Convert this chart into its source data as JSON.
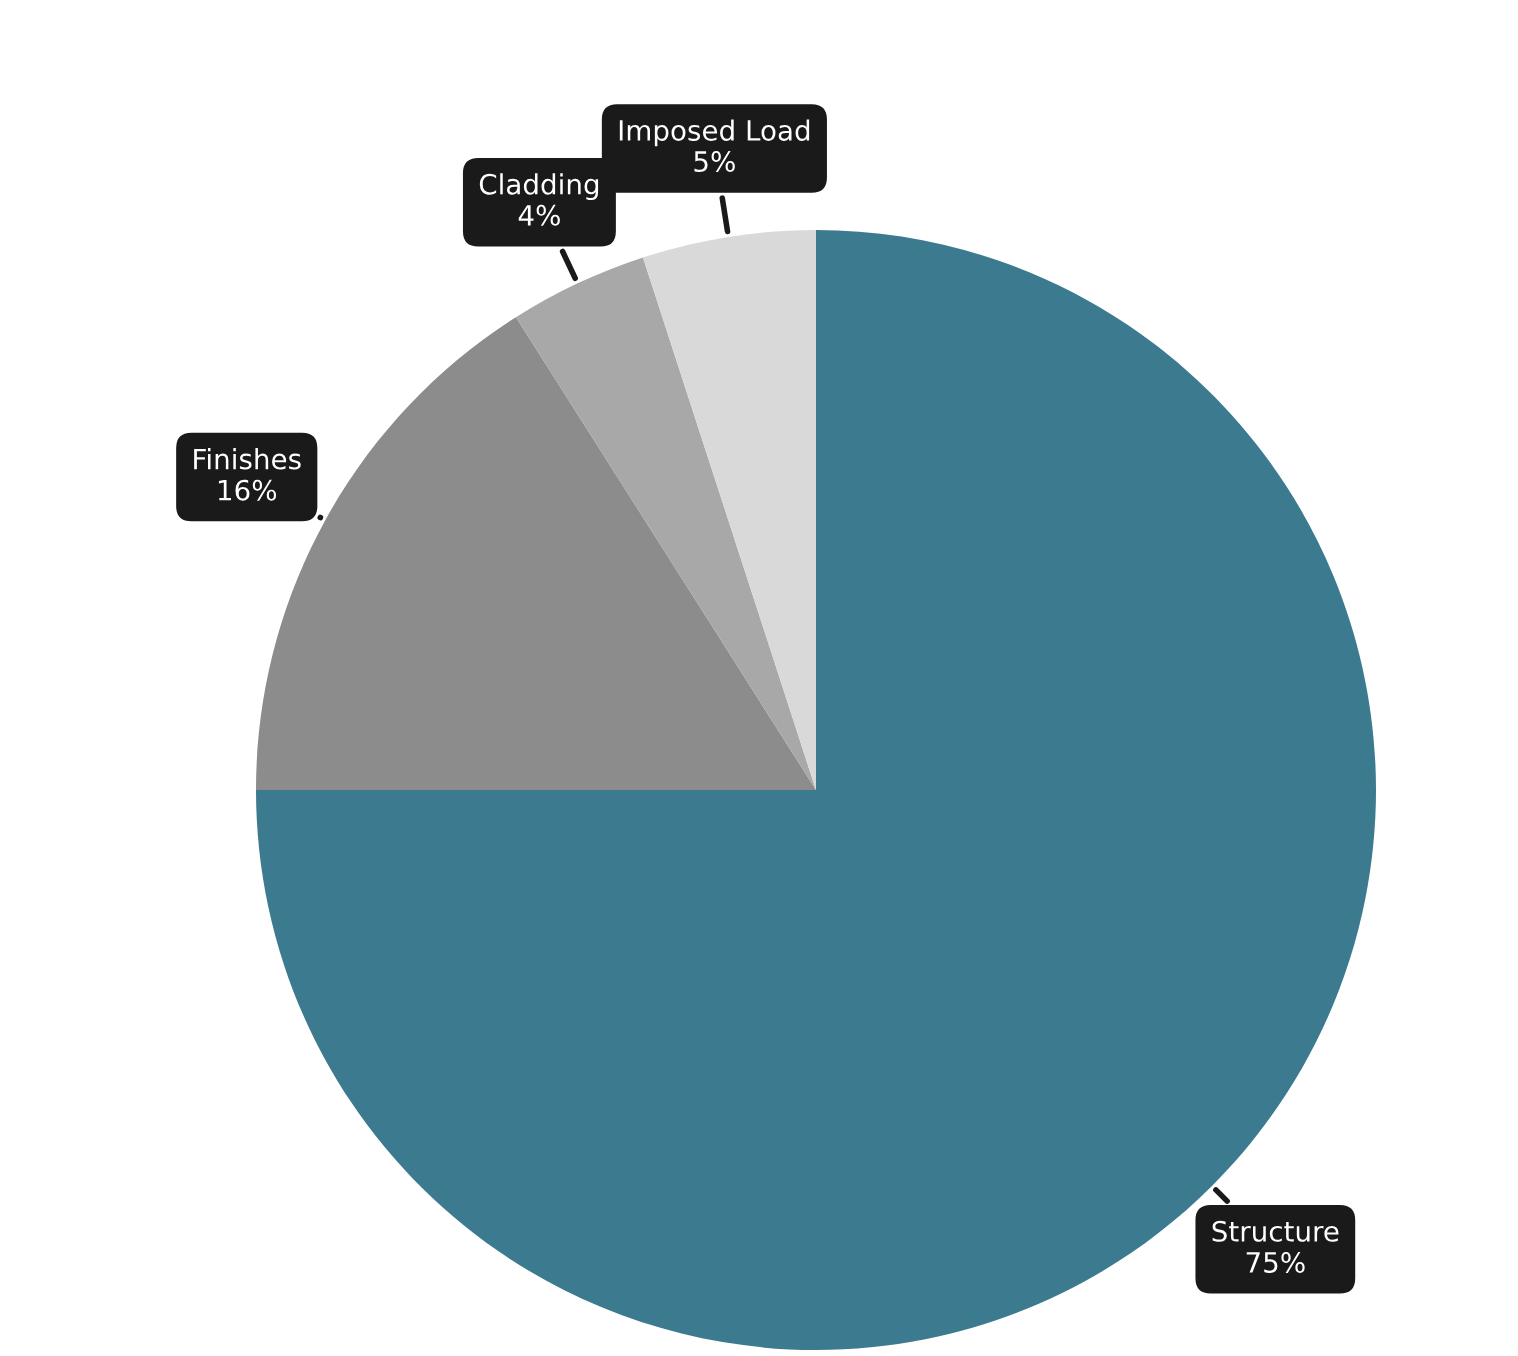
{
  "chart_data": {
    "type": "pie",
    "categories": [
      "Structure",
      "Finishes",
      "Cladding",
      "Imposed Load"
    ],
    "values": [
      75,
      16,
      4,
      5
    ],
    "colors": [
      "#3b7a8f",
      "#8c8c8c",
      "#a8a8a8",
      "#d9d9d9"
    ],
    "value_labels": [
      "75%",
      "16%",
      "4%",
      "5%"
    ]
  }
}
